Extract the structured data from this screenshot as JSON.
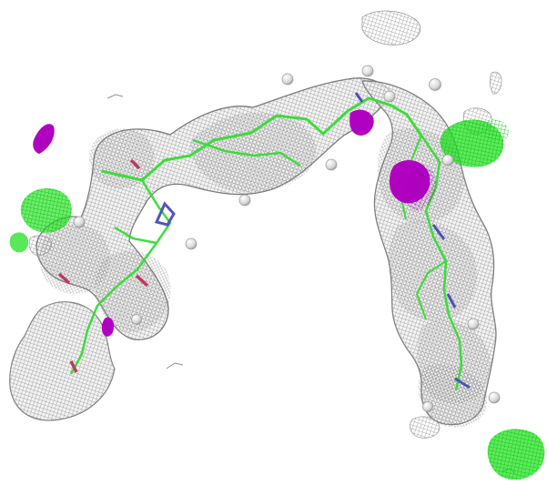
{
  "scene": {
    "subject": "electron-density-mesh-with-ligand",
    "colors": {
      "background": "#ffffff",
      "mesh_gray": "#8f8f8f",
      "mesh_shadow": "#6f6f6f",
      "mesh_fill": "#e6e6e6",
      "carbon_green": "#33dd33",
      "nitrogen_blue": "#4a4ab8",
      "oxygen_red": "#c0305a",
      "positive_green": "#20e020",
      "negative_magenta": "#b000c0",
      "hydrogen_white": "#f2f2f2"
    }
  }
}
